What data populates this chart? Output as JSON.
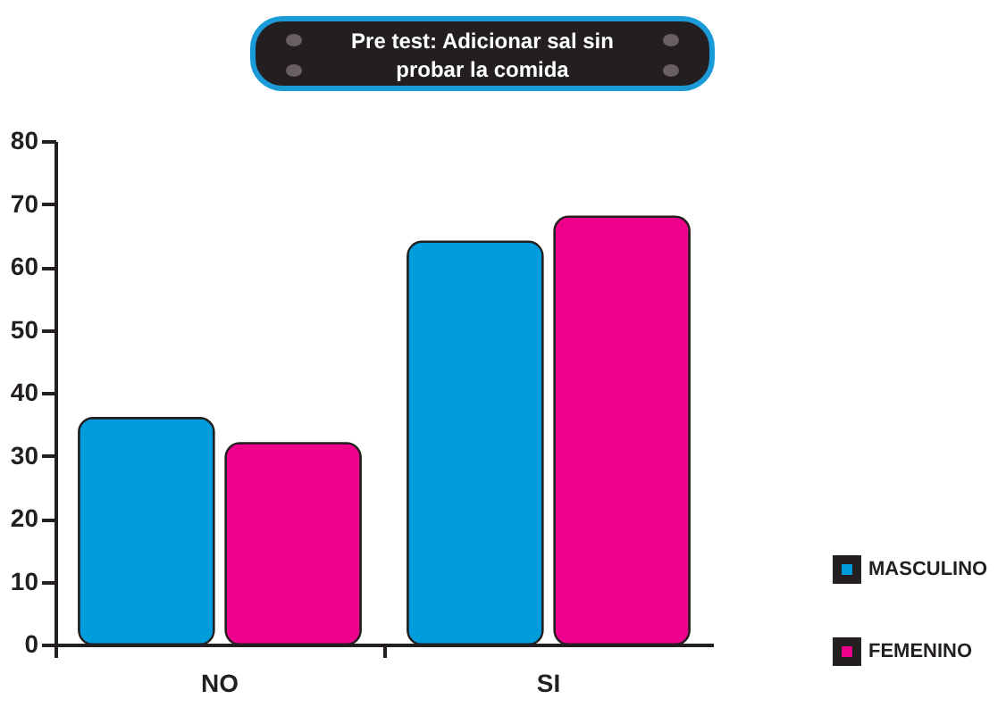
{
  "chart_data": {
    "type": "bar",
    "title": "Pre test: Adicionar sal sin probar la comida",
    "categories": [
      "NO",
      "SI"
    ],
    "series": [
      {
        "name": "MASCULINO",
        "color": "#019cdc",
        "values": [
          36,
          64
        ]
      },
      {
        "name": "FEMENINO",
        "color": "#ec008c",
        "values": [
          32,
          68
        ]
      }
    ],
    "ylim": [
      0,
      80
    ],
    "yticks": [
      0,
      10,
      20,
      30,
      40,
      50,
      60,
      70,
      80
    ],
    "grid": false,
    "legend": "bottom right"
  }
}
